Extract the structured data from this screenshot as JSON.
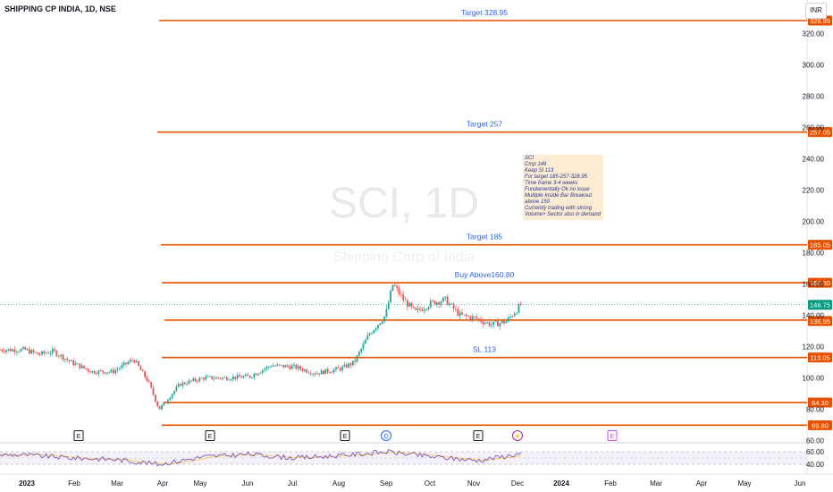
{
  "header": {
    "title": "SHIPPING CP INDIA, 1D, NSE"
  },
  "currency": "INR",
  "watermark": "SCI, 1D",
  "watermark_sub": "Shipping Corp of India",
  "colors": {
    "up": "#26a69a",
    "down": "#ef5350",
    "level_line": "#e65100",
    "label_text": "#2962ff",
    "rsi_line": "#7e57c2",
    "rsi_ma": "#f2c94c",
    "last_price": "#089981"
  },
  "price_axis": {
    "ticks": [
      "320.00",
      "300.00",
      "280.00",
      "260.00",
      "240.00",
      "220.00",
      "200.00",
      "180.00",
      "160.00",
      "140.00",
      "120.00",
      "100.00",
      "80.00",
      "60.00"
    ]
  },
  "rsi_axis": {
    "ticks": [
      "60.00",
      "40.00"
    ]
  },
  "time_axis": {
    "ticks": [
      "2023",
      "Feb",
      "Mar",
      "Apr",
      "May",
      "Jun",
      "Jul",
      "Aug",
      "Sep",
      "Oct",
      "Nov",
      "Dec",
      "2024",
      "Feb",
      "Mar",
      "Apr",
      "May",
      "Jun"
    ]
  },
  "annotations": {
    "levels": [
      {
        "price": 328.95,
        "badge": "328.95",
        "label": "Target 328.95"
      },
      {
        "price": 257.05,
        "badge": "257.05",
        "label": "Target 257"
      },
      {
        "price": 185.05,
        "badge": "185.05",
        "label": "Target 185"
      },
      {
        "price": 160.8,
        "badge": "160.80",
        "label": "Buy Above160.80"
      },
      {
        "price": 136.95,
        "badge": "136.95",
        "label": ""
      },
      {
        "price": 113.05,
        "badge": "113.05",
        "label": "SL 113"
      },
      {
        "price": 84.3,
        "badge": "84.30",
        "label": ""
      },
      {
        "price": 69.8,
        "badge": "69.80",
        "label": ""
      }
    ],
    "last_price": {
      "price": 146.75,
      "badge": "146.75"
    },
    "note_lines": [
      "SCI",
      "Cmp 146",
      "Keep Sl 113",
      "For target 185-257-328.95",
      "Time frame 3-4 weeks",
      "Fundamentally Ok no issue",
      "Multiple Inside Bar Breakout",
      "above 150",
      "Currently trading with strong",
      "Volume+ Sector also in demand"
    ],
    "events": [
      "E",
      "E",
      "E",
      "D",
      "E",
      "⚡",
      "E"
    ]
  },
  "chart_data": {
    "type": "candlestick",
    "title": "SHIPPING CP INDIA, 1D, NSE",
    "currency": "INR",
    "ylim": [
      55,
      335
    ],
    "grid": false,
    "price_path": [
      [
        "2023-01-01",
        118
      ],
      [
        "2023-01-10",
        115
      ],
      [
        "2023-01-20",
        117
      ],
      [
        "2023-02-01",
        110
      ],
      [
        "2023-02-15",
        104
      ],
      [
        "2023-03-01",
        104
      ],
      [
        "2023-03-15",
        112
      ],
      [
        "2023-03-25",
        97
      ],
      [
        "2023-04-01",
        80
      ],
      [
        "2023-04-15",
        96
      ],
      [
        "2023-05-01",
        100
      ],
      [
        "2023-05-15",
        100
      ],
      [
        "2023-06-01",
        101
      ],
      [
        "2023-06-15",
        108
      ],
      [
        "2023-07-01",
        107
      ],
      [
        "2023-07-15",
        103
      ],
      [
        "2023-08-01",
        106
      ],
      [
        "2023-08-10",
        110
      ],
      [
        "2023-08-20",
        128
      ],
      [
        "2023-08-31",
        140
      ],
      [
        "2023-09-05",
        160
      ],
      [
        "2023-09-12",
        150
      ],
      [
        "2023-09-20",
        142
      ],
      [
        "2023-10-01",
        148
      ],
      [
        "2023-10-10",
        150
      ],
      [
        "2023-10-20",
        140
      ],
      [
        "2023-10-31",
        138
      ],
      [
        "2023-11-10",
        134
      ],
      [
        "2023-11-20",
        136
      ],
      [
        "2023-11-30",
        146.75
      ]
    ],
    "rsi": {
      "ticks": [
        60,
        40
      ],
      "path": [
        [
          "2023-01-01",
          55
        ],
        [
          "2023-02-01",
          50
        ],
        [
          "2023-03-01",
          48
        ],
        [
          "2023-04-01",
          40
        ],
        [
          "2023-05-01",
          52
        ],
        [
          "2023-06-01",
          56
        ],
        [
          "2023-07-01",
          50
        ],
        [
          "2023-08-01",
          54
        ],
        [
          "2023-09-01",
          60
        ],
        [
          "2023-10-01",
          52
        ],
        [
          "2023-11-01",
          46
        ],
        [
          "2023-11-30",
          57
        ]
      ]
    },
    "levels": [
      328.95,
      257.05,
      185.05,
      160.8,
      136.95,
      113.05,
      84.3,
      69.8
    ],
    "last_price": 146.75
  }
}
